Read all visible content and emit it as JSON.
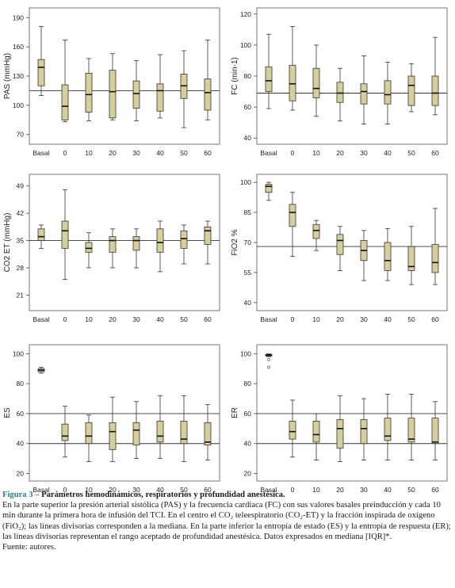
{
  "colors": {
    "box_fill": "#d6cf9c",
    "box_stroke": "#333333",
    "ref_line": "#333333",
    "caption_accent": "#2f7f86"
  },
  "chart_data": [
    {
      "id": "pas",
      "type": "box",
      "ylabel": "PAS (mmHg)",
      "categories": [
        "Basal",
        "0",
        "10",
        "20",
        "30",
        "40",
        "50",
        "60"
      ],
      "ylim": [
        60,
        200
      ],
      "yticks": [
        70,
        100,
        130,
        160,
        190
      ],
      "reference_lines": [
        115
      ],
      "boxes": [
        {
          "min": 110,
          "q1": 120,
          "median": 139,
          "q3": 147,
          "max": 181
        },
        {
          "min": 83,
          "q1": 85,
          "median": 99,
          "q3": 121,
          "max": 167
        },
        {
          "min": 84,
          "q1": 93,
          "median": 111,
          "q3": 133,
          "max": 148
        },
        {
          "min": 85,
          "q1": 87,
          "median": 114,
          "q3": 136,
          "max": 153
        },
        {
          "min": 84,
          "q1": 97,
          "median": 112,
          "q3": 125,
          "max": 146
        },
        {
          "min": 87,
          "q1": 94,
          "median": 115,
          "q3": 122,
          "max": 152
        },
        {
          "min": 77,
          "q1": 107,
          "median": 120,
          "q3": 132,
          "max": 156
        },
        {
          "min": 85,
          "q1": 95,
          "median": 113,
          "q3": 127,
          "max": 167
        }
      ]
    },
    {
      "id": "fc",
      "type": "box",
      "ylabel": "FC (min-1)",
      "categories": [
        "Basal",
        "0",
        "10",
        "20",
        "30",
        "40",
        "50",
        "60"
      ],
      "ylim": [
        36,
        124
      ],
      "yticks": [
        40,
        60,
        80,
        100,
        120
      ],
      "reference_lines": [
        69
      ],
      "boxes": [
        {
          "min": 59,
          "q1": 70,
          "median": 77,
          "q3": 86,
          "max": 107
        },
        {
          "min": 58,
          "q1": 64,
          "median": 75,
          "q3": 87,
          "max": 112
        },
        {
          "min": 54,
          "q1": 66,
          "median": 72,
          "q3": 85,
          "max": 100
        },
        {
          "min": 51,
          "q1": 63,
          "median": 69,
          "q3": 76,
          "max": 85
        },
        {
          "min": 49,
          "q1": 62,
          "median": 70,
          "q3": 75,
          "max": 93
        },
        {
          "min": 49,
          "q1": 62,
          "median": 68,
          "q3": 77,
          "max": 89
        },
        {
          "min": 57,
          "q1": 61,
          "median": 74,
          "q3": 80,
          "max": 88
        },
        {
          "min": 55,
          "q1": 61,
          "median": 69,
          "q3": 80,
          "max": 105
        }
      ]
    },
    {
      "id": "co2",
      "type": "box",
      "ylabel": "CO2 ET (mmHg)",
      "categories": [
        "Basal",
        "0",
        "10",
        "20",
        "30",
        "40",
        "50",
        "60"
      ],
      "ylim": [
        17,
        52
      ],
      "yticks": [
        21,
        28,
        35,
        42,
        49
      ],
      "reference_lines": [
        35
      ],
      "boxes": [
        {
          "min": 33,
          "q1": 35,
          "median": 36,
          "q3": 38,
          "max": 39
        },
        {
          "min": 25,
          "q1": 33,
          "median": 37.5,
          "q3": 40,
          "max": 48
        },
        {
          "min": 28,
          "q1": 32,
          "median": 33,
          "q3": 34.5,
          "max": 37
        },
        {
          "min": 28,
          "q1": 32,
          "median": 35,
          "q3": 36,
          "max": 38
        },
        {
          "min": 28,
          "q1": 32.5,
          "median": 35,
          "q3": 36,
          "max": 38
        },
        {
          "min": 27,
          "q1": 32,
          "median": 34.5,
          "q3": 38,
          "max": 40
        },
        {
          "min": 29,
          "q1": 33,
          "median": 35.5,
          "q3": 37.5,
          "max": 39
        },
        {
          "min": 29,
          "q1": 34,
          "median": 37.5,
          "q3": 38.5,
          "max": 40
        }
      ]
    },
    {
      "id": "fio2",
      "type": "box",
      "ylabel": "FiO2 %",
      "categories": [
        "Basal",
        "0",
        "10",
        "20",
        "30",
        "40",
        "50",
        "60"
      ],
      "ylim": [
        36,
        104
      ],
      "yticks": [
        40,
        55,
        70,
        85,
        100
      ],
      "reference_lines": [
        68
      ],
      "boxes": [
        {
          "min": 91,
          "q1": 95,
          "median": 98,
          "q3": 99,
          "max": 100
        },
        {
          "min": 63,
          "q1": 78,
          "median": 85,
          "q3": 89,
          "max": 95
        },
        {
          "min": 66,
          "q1": 72,
          "median": 76,
          "q3": 79,
          "max": 81
        },
        {
          "min": 56,
          "q1": 64,
          "median": 71,
          "q3": 74,
          "max": 78
        },
        {
          "min": 51,
          "q1": 61,
          "median": 66,
          "q3": 71,
          "max": 76
        },
        {
          "min": 51,
          "q1": 56,
          "median": 61,
          "q3": 70,
          "max": 77
        },
        {
          "min": 49,
          "q1": 56,
          "median": 58,
          "q3": 68,
          "max": 78
        },
        {
          "min": 49,
          "q1": 55,
          "median": 60,
          "q3": 69,
          "max": 87
        }
      ]
    },
    {
      "id": "es",
      "type": "box",
      "ylabel": "ES",
      "categories": [
        "Basal",
        "0",
        "10",
        "20",
        "30",
        "40",
        "50",
        "60"
      ],
      "ylim": [
        15,
        106
      ],
      "yticks": [
        20,
        40,
        60,
        80,
        100
      ],
      "reference_lines": [
        40,
        60
      ],
      "boxes": [
        {
          "min": 87,
          "q1": 88,
          "median": 89,
          "q3": 90,
          "max": 91
        },
        {
          "min": 31,
          "q1": 42,
          "median": 45,
          "q3": 53,
          "max": 65
        },
        {
          "min": 28,
          "q1": 40,
          "median": 45,
          "q3": 54,
          "max": 59
        },
        {
          "min": 28,
          "q1": 36,
          "median": 48,
          "q3": 54,
          "max": 71
        },
        {
          "min": 30,
          "q1": 39,
          "median": 49,
          "q3": 54,
          "max": 68
        },
        {
          "min": 30,
          "q1": 41,
          "median": 45,
          "q3": 55,
          "max": 72
        },
        {
          "min": 28,
          "q1": 40,
          "median": 43,
          "q3": 55,
          "max": 72
        },
        {
          "min": 29,
          "q1": 39,
          "median": 41,
          "q3": 54,
          "max": 66
        }
      ]
    },
    {
      "id": "er",
      "type": "box",
      "ylabel": "ER",
      "categories": [
        "Basal",
        "0",
        "10",
        "20",
        "30",
        "40",
        "50",
        "60"
      ],
      "ylim": [
        15,
        106
      ],
      "yticks": [
        20,
        40,
        60,
        80,
        100
      ],
      "reference_lines": [
        40,
        60
      ],
      "boxes": [
        {
          "min": 98,
          "q1": 98.5,
          "median": 99,
          "q3": 99.5,
          "max": 100,
          "outliers": [
            96,
            91
          ]
        },
        {
          "min": 31,
          "q1": 43,
          "median": 48,
          "q3": 55,
          "max": 69
        },
        {
          "min": 29,
          "q1": 41,
          "median": 46,
          "q3": 55,
          "max": 60
        },
        {
          "min": 28,
          "q1": 37,
          "median": 50,
          "q3": 56,
          "max": 72
        },
        {
          "min": 29,
          "q1": 40,
          "median": 50,
          "q3": 56,
          "max": 70
        },
        {
          "min": 29,
          "q1": 42,
          "median": 45,
          "q3": 57,
          "max": 73
        },
        {
          "min": 29,
          "q1": 41,
          "median": 43,
          "q3": 57,
          "max": 73
        },
        {
          "min": 29,
          "q1": 40,
          "median": 41,
          "q3": 57,
          "max": 68
        }
      ]
    }
  ],
  "caption": {
    "figure_label": "Figura 3 –",
    "figure_title": "Parámetros hemodinámicos, respiratorios y profundidad anestésica.",
    "body": "En la parte superior la presión arterial sistólica (PAS) y la frecuencia cardiaca (FC) con sus valores basales preinducción y cada 10 min durante la primera hora de infusión del TCI. En el centro el CO₂ teleespiratorio (CO₂-ET) y la fracción inspirada de oxígeno (FiO₂); las líneas divisorias corresponden a la mediana. En la parte inferior la entropía de estado (ES) y la entropía de respuesta (ER); las líneas divisorias representan el rango aceptado de profundidad anestésica. Datos expresados en mediana [IQR]*.",
    "source": "Fuente: autores."
  }
}
